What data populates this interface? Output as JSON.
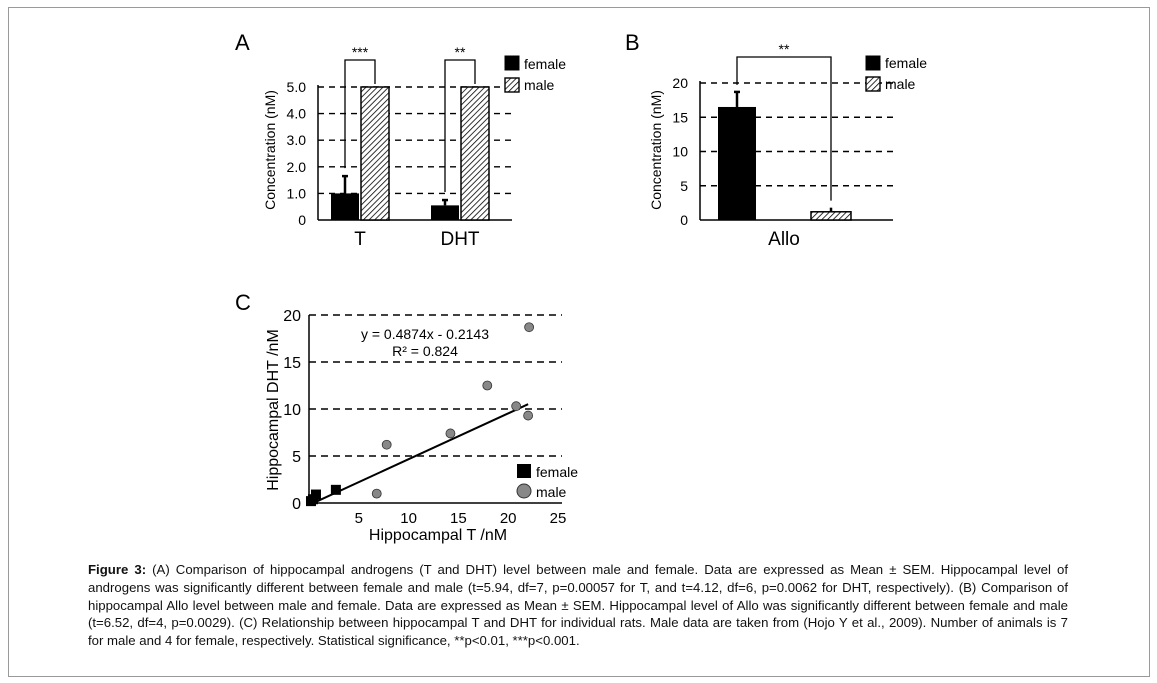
{
  "caption": {
    "label": "Figure 3:",
    "text": " (A) Comparison of hippocampal androgens (T and DHT) level between male and female. Data are expressed as Mean ± SEM. Hippocampal level of androgens was significantly different between female and male (t=5.94, df=7, p=0.00057 for T, and t=4.12, df=6, p=0.0062 for DHT, respectively). (B) Comparison of hippocampal Allo level between male and female. Data are expressed as Mean ± SEM. Hippocampal level of Allo was significantly different between female and male (t=6.52, df=4, p=0.0029). (C) Relationship between hippocampal T and DHT for individual rats. Male data are taken from (Hojo Y et al., 2009). Number of animals is 7 for male and 4 for female, respectively. Statistical significance, **p<0.01, ***p<0.001."
  },
  "colors": {
    "female": "#000000",
    "male_hatch": "#000000",
    "male_point": "#888888",
    "grid": "#000000"
  },
  "chart_data": [
    {
      "panel": "A",
      "type": "bar",
      "categories": [
        "T",
        "DHT"
      ],
      "ylabel": "Concentration (nM)",
      "ylim": [
        0,
        5.0
      ],
      "yticks": [
        "0",
        "1.0",
        "2.0",
        "3.0",
        "4.0",
        "5.0"
      ],
      "grid": "dashed horizontal",
      "legend": [
        "female",
        "male"
      ],
      "legend_position": "top-right",
      "series": [
        {
          "name": "female",
          "values": [
            1.0,
            0.55
          ],
          "errors": [
            0.65,
            0.2
          ]
        },
        {
          "name": "male",
          "values": [
            5.0,
            5.0
          ],
          "errors": [
            0,
            0
          ]
        }
      ],
      "significance": [
        "***",
        "**"
      ]
    },
    {
      "panel": "B",
      "type": "bar",
      "categories": [
        "Allo"
      ],
      "ylabel": "Concentration (nM)",
      "ylim": [
        0,
        20
      ],
      "yticks": [
        "0",
        "5",
        "10",
        "15",
        "20"
      ],
      "grid": "dashed horizontal",
      "legend": [
        "female",
        "male"
      ],
      "legend_position": "top-right",
      "series": [
        {
          "name": "female",
          "values": [
            16.5
          ],
          "errors": [
            2.2
          ]
        },
        {
          "name": "male",
          "values": [
            1.2
          ],
          "errors": [
            0.6
          ]
        }
      ],
      "significance": [
        "**"
      ]
    },
    {
      "panel": "C",
      "type": "scatter",
      "xlabel": "Hippocampal T /nM",
      "ylabel": "Hippocampal DHT /nM",
      "xlim": [
        0,
        25
      ],
      "ylim": [
        0,
        20
      ],
      "xticks": [
        "5",
        "10",
        "15",
        "20",
        "25"
      ],
      "yticks": [
        "0",
        "5",
        "10",
        "15",
        "20"
      ],
      "grid": "dashed horizontal",
      "legend": [
        "female",
        "male"
      ],
      "legend_position": "bottom-right",
      "equation": "y = 0.4874x - 0.2143",
      "r_squared": "R² = 0.824",
      "fit": {
        "slope": 0.4874,
        "intercept": -0.2143,
        "x_range": [
          0.4,
          22.0
        ]
      },
      "series": [
        {
          "name": "female",
          "x": [
            0.2,
            0.4,
            0.7,
            2.7
          ],
          "y": [
            0.2,
            0.4,
            0.9,
            1.4
          ]
        },
        {
          "name": "male",
          "x": [
            6.8,
            7.8,
            14.2,
            17.9,
            20.8,
            22.0,
            22.1
          ],
          "y": [
            1.0,
            6.2,
            7.4,
            12.5,
            10.3,
            9.3,
            18.7
          ]
        }
      ]
    }
  ]
}
